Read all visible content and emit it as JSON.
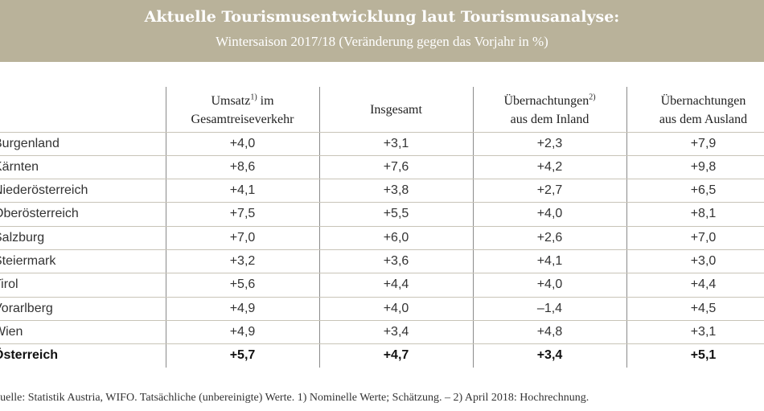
{
  "header": {
    "title": "Aktuelle Tourismusentwicklung laut Tourismusanalyse:",
    "subtitle": "Wintersaison 2017/18 (Veränderung gegen das Vorjahr in %)"
  },
  "columns": [
    {
      "line1": "Umsatz",
      "sup": "1)",
      "line1b": " im",
      "line2": "Gesamtreiseverkehr"
    },
    {
      "line1": "Insgesamt",
      "sup": "",
      "line1b": "",
      "line2": ""
    },
    {
      "line1": "Übernachtungen",
      "sup": "2)",
      "line1b": "",
      "line2": "aus dem Inland"
    },
    {
      "line1": "Übernachtungen",
      "sup": "",
      "line1b": "",
      "line2": "aus dem Ausland"
    }
  ],
  "rows": [
    {
      "name": "Burgenland",
      "values": [
        "+4,0",
        "+3,1",
        "+2,3",
        "+7,9"
      ]
    },
    {
      "name": "Kärnten",
      "values": [
        "+8,6",
        "+7,6",
        "+4,2",
        "+9,8"
      ]
    },
    {
      "name": "Niederösterreich",
      "values": [
        "+4,1",
        "+3,8",
        "+2,7",
        "+6,5"
      ]
    },
    {
      "name": "Oberösterreich",
      "values": [
        "+7,5",
        "+5,5",
        "+4,0",
        "+8,1"
      ]
    },
    {
      "name": "Salzburg",
      "values": [
        "+7,0",
        "+6,0",
        "+2,6",
        "+7,0"
      ]
    },
    {
      "name": "Steiermark",
      "values": [
        "+3,2",
        "+3,6",
        "+4,1",
        "+3,0"
      ]
    },
    {
      "name": "Tirol",
      "values": [
        "+5,6",
        "+4,4",
        "+4,0",
        "+4,4"
      ]
    },
    {
      "name": "Vorarlberg",
      "values": [
        "+4,9",
        "+4,0",
        "–1,4",
        "+4,5"
      ]
    },
    {
      "name": "Wien",
      "values": [
        "+4,9",
        "+3,4",
        "+4,8",
        "+3,1"
      ]
    },
    {
      "name": "Österreich",
      "values": [
        "+5,7",
        "+4,7",
        "+3,4",
        "+5,1"
      ],
      "total": true
    }
  ],
  "footnote": "Quelle: Statistik Austria, WIFO. Tatsächliche (unbereinigte) Werte. 1) Nominelle Werte; Schätzung. – 2) April 2018: Hochrechnung.",
  "colors": {
    "header_bg": "#b9b29a",
    "header_text": "#ffffff"
  }
}
